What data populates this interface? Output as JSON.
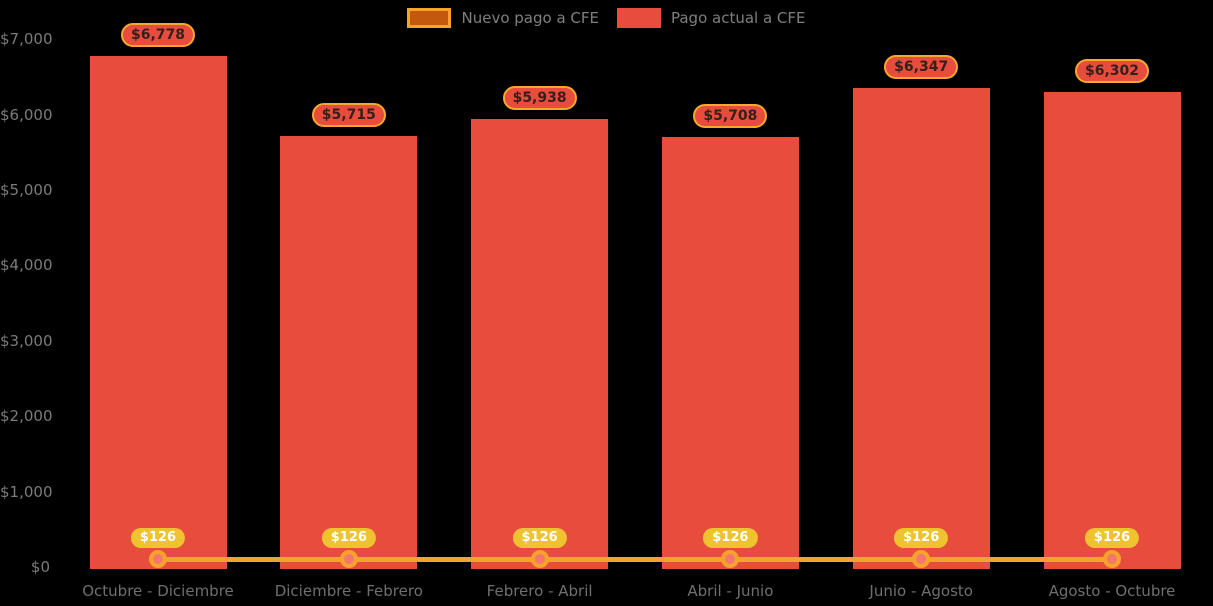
{
  "background": "#000000",
  "legend": {
    "items": [
      {
        "label": "Nuevo pago a CFE",
        "swatch_fill": "#c2590e",
        "swatch_border": "#f6a22d"
      },
      {
        "label": "Pago actual a CFE",
        "swatch_fill": "#e74c3c",
        "swatch_border": "#e74c3c"
      }
    ]
  },
  "chart_data": {
    "type": "bar",
    "subtype": "bar-plus-line-combo",
    "categories": [
      "Octubre - Diciembre",
      "Diciembre - Febrero",
      "Febrero - Abril",
      "Abril - Junio",
      "Junio - Agosto",
      "Agosto - Octubre"
    ],
    "series": [
      {
        "name": "Nuevo pago a CFE",
        "type": "line",
        "color": "#f6a22d",
        "marker_fill": "#f4766d",
        "values": [
          126,
          126,
          126,
          126,
          126,
          126
        ],
        "labels": [
          "$126",
          "$126",
          "$126",
          "$126",
          "$126",
          "$126"
        ]
      },
      {
        "name": "Pago actual a CFE",
        "type": "bar",
        "color": "#e74c3c",
        "values": [
          6778,
          5715,
          5938,
          5708,
          6347,
          6302
        ],
        "labels": [
          "$6,778",
          "$5,715",
          "$5,938",
          "$5,708",
          "$6,347",
          "$6,302"
        ]
      }
    ],
    "ylim": [
      0,
      7000
    ],
    "y_ticks": [
      {
        "value": 0,
        "label": "$0"
      },
      {
        "value": 1000,
        "label": "$1,000"
      },
      {
        "value": 2000,
        "label": "$2,000"
      },
      {
        "value": 3000,
        "label": "$3,000"
      },
      {
        "value": 4000,
        "label": "$4,000"
      },
      {
        "value": 5000,
        "label": "$5,000"
      },
      {
        "value": 6000,
        "label": "$6,000"
      },
      {
        "value": 7000,
        "label": "$7,000"
      }
    ],
    "grid": false,
    "legend_position": "top",
    "background": "#000000"
  }
}
